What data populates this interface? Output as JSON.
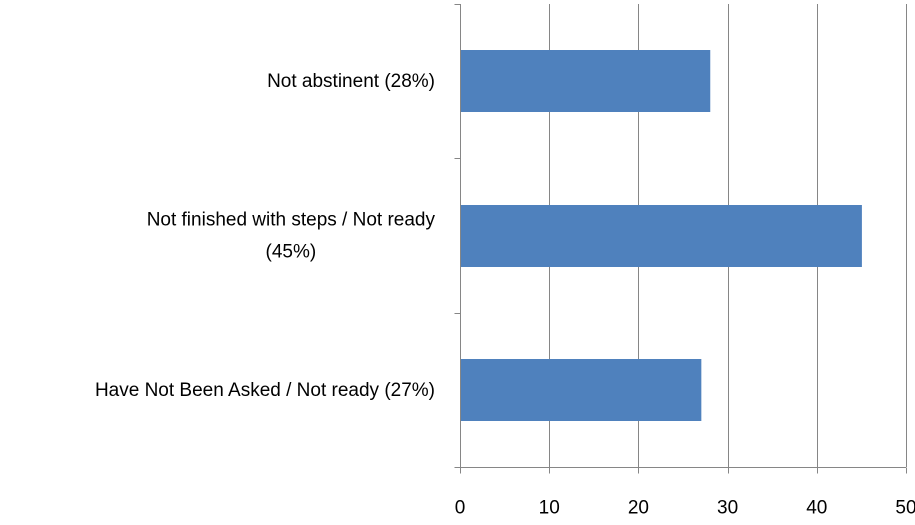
{
  "chart_data": {
    "type": "bar",
    "orientation": "horizontal",
    "categories": [
      "Not abstinent (28%)",
      "Not finished with steps / Not ready (45%)",
      "Have Not Been Asked / Not ready (27%)"
    ],
    "category_lines": [
      [
        "Not abstinent (28%)"
      ],
      [
        "Not finished with steps / Not ready",
        "(45%)"
      ],
      [
        "Have Not Been Asked / Not ready (27%)"
      ]
    ],
    "values": [
      28,
      45,
      27
    ],
    "xlim": [
      0,
      50
    ],
    "xticks": [
      0,
      10,
      20,
      30,
      40,
      50
    ],
    "grid": true,
    "legend": "none",
    "bar_color": "#4F81BD",
    "grid_color": "#868686",
    "axis_color": "#868686"
  }
}
